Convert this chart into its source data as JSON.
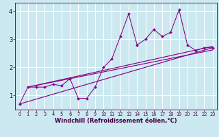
{
  "title": "",
  "xlabel": "Windchill (Refroidissement éolien,°C)",
  "bg_color": "#cce8f0",
  "grid_color": "#ffffff",
  "line_color": "#880088",
  "xlim": [
    -0.5,
    23.5
  ],
  "ylim": [
    0.5,
    4.3
  ],
  "xticks": [
    0,
    1,
    2,
    3,
    4,
    5,
    6,
    7,
    8,
    9,
    10,
    11,
    12,
    13,
    14,
    15,
    16,
    17,
    18,
    19,
    20,
    21,
    22,
    23
  ],
  "yticks": [
    1,
    2,
    3,
    4
  ],
  "series_zigzag_x": [
    0,
    1,
    2,
    3,
    4,
    5,
    6,
    7,
    8,
    9,
    10,
    11,
    12,
    13,
    14,
    15,
    16,
    17,
    18,
    19,
    20,
    21,
    22,
    23
  ],
  "series_zigzag_y": [
    0.7,
    1.3,
    1.3,
    1.3,
    1.4,
    1.35,
    1.6,
    0.9,
    0.9,
    1.3,
    2.0,
    2.3,
    3.1,
    3.9,
    2.8,
    3.0,
    3.35,
    3.1,
    3.25,
    4.05,
    2.8,
    2.6,
    2.7,
    2.7
  ],
  "trend_lines": [
    {
      "x": [
        0,
        23
      ],
      "y": [
        0.7,
        2.7
      ]
    },
    {
      "x": [
        1,
        23
      ],
      "y": [
        1.3,
        2.75
      ]
    },
    {
      "x": [
        1,
        23
      ],
      "y": [
        1.3,
        2.62
      ]
    }
  ]
}
